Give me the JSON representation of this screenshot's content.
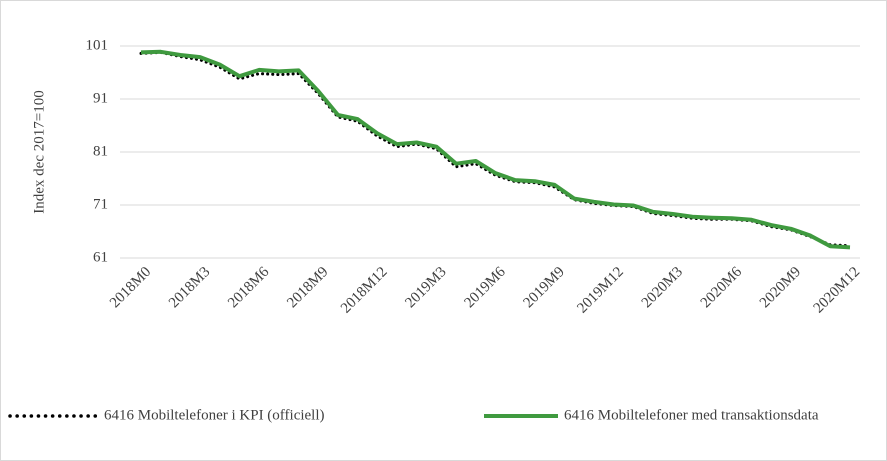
{
  "chart_data": {
    "type": "line",
    "y_label": "Index dec 2017=100",
    "categories": [
      "2018M0",
      null,
      null,
      "2018M3",
      null,
      null,
      "2018M6",
      null,
      null,
      "2018M9",
      null,
      null,
      "2018M12",
      null,
      null,
      "2019M3",
      null,
      null,
      "2019M6",
      null,
      null,
      "2019M9",
      null,
      null,
      "2019M12",
      null,
      null,
      "2020M3",
      null,
      null,
      "2020M6",
      null,
      null,
      "2020M9",
      null,
      null,
      "2020M12"
    ],
    "series": [
      {
        "name": "6416 Mobiltelefoner i KPI (officiell)",
        "color": "#000000",
        "style": "dotted",
        "values": [
          99.6,
          99.8,
          99.0,
          98.4,
          97.0,
          94.8,
          95.8,
          95.6,
          95.8,
          92.0,
          87.6,
          86.8,
          84.0,
          82.0,
          82.5,
          81.6,
          78.2,
          78.8,
          76.6,
          75.4,
          75.2,
          74.4,
          72.0,
          71.3,
          70.9,
          70.7,
          69.4,
          69.0,
          68.5,
          68.3,
          68.3,
          68.0,
          66.9,
          66.3,
          65.0,
          63.5,
          63.3
        ]
      },
      {
        "name": "6416 Mobiltelefoner med transaktionsdata",
        "color": "#3f9a3f",
        "style": "solid",
        "values": [
          99.8,
          99.9,
          99.3,
          98.9,
          97.5,
          95.3,
          96.5,
          96.2,
          96.4,
          92.5,
          88.0,
          87.2,
          84.5,
          82.5,
          82.8,
          82.0,
          78.8,
          79.3,
          77.0,
          75.7,
          75.5,
          74.8,
          72.2,
          71.6,
          71.1,
          70.9,
          69.7,
          69.3,
          68.8,
          68.6,
          68.5,
          68.2,
          67.2,
          66.5,
          65.2,
          63.2,
          63.0
        ]
      }
    ],
    "ylim": [
      61,
      101
    ],
    "yticks": [
      61,
      71,
      81,
      91,
      101
    ],
    "grid": true,
    "legend": "bottom"
  }
}
